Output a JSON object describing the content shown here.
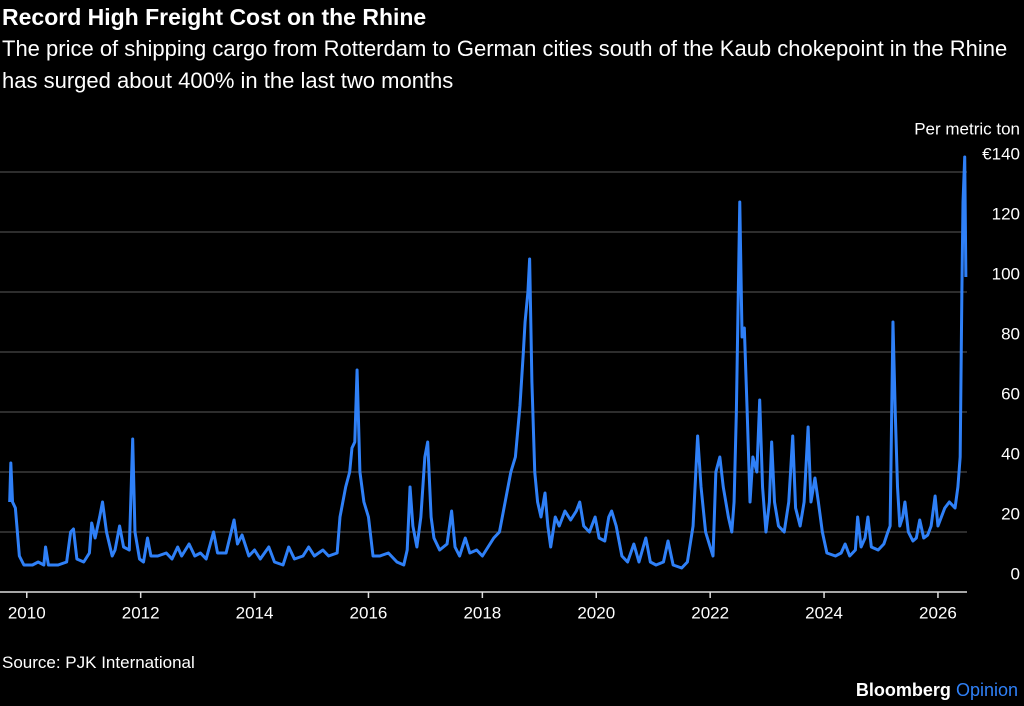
{
  "chart_data": {
    "type": "line",
    "title": "Record High Freight Cost on the Rhine",
    "subtitle": "The price of shipping cargo from Rotterdam to German cities south of the Kaub chokepoint in the Rhine has surged about 400% in the last two months",
    "y_label": "Per metric ton",
    "source": "Source: PJK International",
    "brand": "Bloomberg",
    "brand_sub": "Opinion",
    "xlim": [
      2009.53,
      2026.51
    ],
    "xticks": [
      2010,
      2012,
      2014,
      2016,
      2018,
      2020,
      2022,
      2024,
      2026
    ],
    "ylim": [
      0,
      146
    ],
    "yticks": [
      0,
      20,
      40,
      60,
      80,
      100,
      120,
      {
        "value": 140,
        "label": "€140"
      }
    ],
    "grid": true,
    "series": [
      {
        "color": "#2f80f7",
        "x": [
          2009.7,
          2009.72,
          2009.75,
          2009.8,
          2009.87,
          2009.95,
          2010.1,
          2010.2,
          2010.3,
          2010.33,
          2010.38,
          2010.55,
          2010.7,
          2010.77,
          2010.82,
          2010.88,
          2011.0,
          2011.1,
          2011.14,
          2011.2,
          2011.28,
          2011.33,
          2011.4,
          2011.5,
          2011.55,
          2011.63,
          2011.7,
          2011.8,
          2011.86,
          2011.9,
          2011.98,
          2012.05,
          2012.12,
          2012.18,
          2012.3,
          2012.45,
          2012.55,
          2012.65,
          2012.72,
          2012.85,
          2012.95,
          2013.05,
          2013.15,
          2013.28,
          2013.35,
          2013.5,
          2013.64,
          2013.7,
          2013.78,
          2013.9,
          2014.0,
          2014.1,
          2014.25,
          2014.35,
          2014.5,
          2014.6,
          2014.7,
          2014.85,
          2014.95,
          2015.05,
          2015.2,
          2015.3,
          2015.45,
          2015.5,
          2015.6,
          2015.67,
          2015.71,
          2015.76,
          2015.8,
          2015.85,
          2015.92,
          2016.0,
          2016.08,
          2016.2,
          2016.35,
          2016.5,
          2016.62,
          2016.68,
          2016.73,
          2016.78,
          2016.85,
          2016.92,
          2016.99,
          2017.04,
          2017.1,
          2017.15,
          2017.25,
          2017.38,
          2017.46,
          2017.52,
          2017.6,
          2017.7,
          2017.78,
          2017.9,
          2018.0,
          2018.1,
          2018.2,
          2018.3,
          2018.4,
          2018.5,
          2018.58,
          2018.66,
          2018.72,
          2018.75,
          2018.8,
          2018.83,
          2018.87,
          2018.92,
          2018.97,
          2019.03,
          2019.1,
          2019.15,
          2019.2,
          2019.28,
          2019.35,
          2019.45,
          2019.55,
          2019.65,
          2019.71,
          2019.78,
          2019.88,
          2019.98,
          2020.05,
          2020.15,
          2020.22,
          2020.27,
          2020.35,
          2020.45,
          2020.55,
          2020.66,
          2020.75,
          2020.87,
          2020.95,
          2021.05,
          2021.18,
          2021.26,
          2021.35,
          2021.5,
          2021.6,
          2021.7,
          2021.78,
          2021.84,
          2021.92,
          2022.0,
          2022.05,
          2022.1,
          2022.17,
          2022.23,
          2022.32,
          2022.38,
          2022.42,
          2022.46,
          2022.52,
          2022.56,
          2022.6,
          2022.65,
          2022.7,
          2022.75,
          2022.82,
          2022.87,
          2022.92,
          2022.98,
          2023.04,
          2023.08,
          2023.13,
          2023.2,
          2023.3,
          2023.38,
          2023.45,
          2023.5,
          2023.58,
          2023.65,
          2023.72,
          2023.77,
          2023.84,
          2023.9,
          2023.97,
          2024.05,
          2024.2,
          2024.3,
          2024.37,
          2024.45,
          2024.55,
          2024.59,
          2024.65,
          2024.72,
          2024.77,
          2024.83,
          2024.95,
          2025.05,
          2025.12,
          2025.16,
          2025.21,
          2025.25,
          2025.29,
          2025.33,
          2025.38,
          2025.42,
          2025.48,
          2025.56,
          2025.62,
          2025.68,
          2025.75,
          2025.82,
          2025.88,
          2025.95,
          2026.0,
          2026.06,
          2026.12,
          2026.2,
          2026.3,
          2026.35,
          2026.39,
          2026.42,
          2026.44,
          2026.47,
          2026.49
        ],
        "values": [
          30,
          43,
          30,
          28,
          12,
          9,
          9,
          10,
          9,
          15,
          9,
          9,
          10,
          20,
          21,
          11,
          10,
          13,
          23,
          18,
          25,
          30,
          20,
          12,
          14,
          22,
          15,
          14,
          51,
          20,
          11,
          10,
          18,
          12,
          12,
          13,
          11,
          15,
          12,
          16,
          12,
          13,
          11,
          20,
          13,
          13,
          24,
          16,
          19,
          12,
          14,
          11,
          15,
          10,
          9,
          15,
          11,
          12,
          15,
          12,
          14,
          12,
          13,
          25,
          35,
          40,
          48,
          50,
          74,
          40,
          30,
          25,
          12,
          12,
          13,
          10,
          9,
          14,
          35,
          22,
          15,
          25,
          45,
          50,
          25,
          18,
          14,
          16,
          27,
          15,
          12,
          18,
          13,
          14,
          12,
          15,
          18,
          20,
          30,
          40,
          45,
          62,
          80,
          90,
          100,
          111,
          70,
          40,
          30,
          25,
          33,
          22,
          15,
          25,
          22,
          27,
          24,
          27,
          30,
          22,
          20,
          25,
          18,
          17,
          25,
          27,
          22,
          12,
          10,
          16,
          10,
          18,
          10,
          9,
          10,
          17,
          9,
          8,
          10,
          22,
          52,
          35,
          20,
          15,
          12,
          40,
          45,
          35,
          25,
          20,
          30,
          60,
          130,
          85,
          88,
          60,
          30,
          45,
          40,
          64,
          35,
          20,
          30,
          50,
          30,
          22,
          20,
          30,
          52,
          28,
          22,
          30,
          55,
          30,
          38,
          30,
          20,
          13,
          12,
          13,
          16,
          12,
          14,
          25,
          15,
          18,
          25,
          15,
          14,
          16,
          20,
          22,
          90,
          60,
          35,
          22,
          25,
          30,
          20,
          17,
          18,
          24,
          18,
          19,
          22,
          32,
          22,
          25,
          28,
          30,
          28,
          35,
          45,
          100,
          130,
          145,
          105
        ]
      }
    ]
  }
}
